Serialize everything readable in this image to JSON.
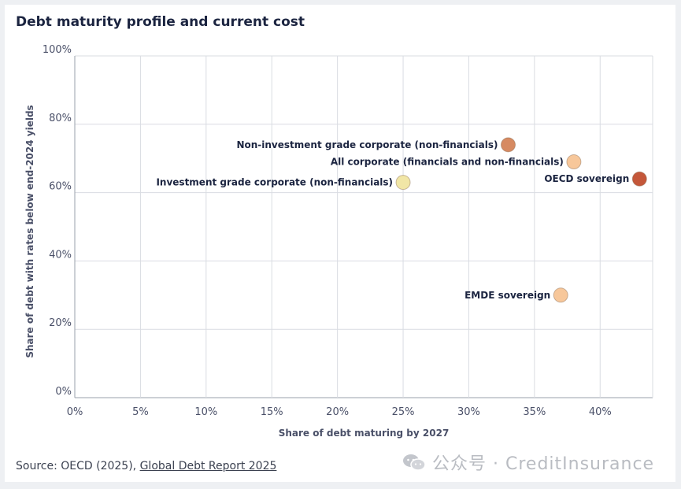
{
  "chart_data": {
    "type": "scatter",
    "title": "Debt maturity profile and current cost",
    "xlabel": "Share of debt maturing by 2027",
    "ylabel": "Share of debt with rates below end-2024 yields",
    "xlim": [
      0,
      44
    ],
    "ylim": [
      0,
      100
    ],
    "x_ticks": [
      0,
      5,
      10,
      15,
      20,
      25,
      30,
      35,
      40
    ],
    "x_tick_labels": [
      "0%",
      "5%",
      "10%",
      "15%",
      "20%",
      "25%",
      "30%",
      "35%",
      "40%"
    ],
    "y_ticks": [
      0,
      20,
      40,
      60,
      80,
      100
    ],
    "y_tick_labels": [
      "0%",
      "20%",
      "40%",
      "60%",
      "80%",
      "100%"
    ],
    "grid": true,
    "points": [
      {
        "label": "Non-investment grade corporate (non-financials)",
        "x": 33,
        "y": 74,
        "color": "#d68a62",
        "label_side": "left"
      },
      {
        "label": "All corporate (financials and non-financials)",
        "x": 38,
        "y": 69,
        "color": "#f7c79a",
        "label_side": "left"
      },
      {
        "label": "OECD sovereign",
        "x": 43,
        "y": 64,
        "color": "#c4573a",
        "label_side": "left"
      },
      {
        "label": "Investment grade corporate (non-financials)",
        "x": 25,
        "y": 63,
        "color": "#f1e6a6",
        "label_side": "left"
      },
      {
        "label": "EMDE sovereign",
        "x": 37,
        "y": 30,
        "color": "#f7c79a",
        "label_side": "left"
      }
    ]
  },
  "footer": {
    "source_prefix": "Source: OECD (2025), ",
    "source_link": "Global Debt Report 2025"
  },
  "watermark": {
    "text": "公众号 · CreditInsurance",
    "icon": "wechat-icon"
  }
}
